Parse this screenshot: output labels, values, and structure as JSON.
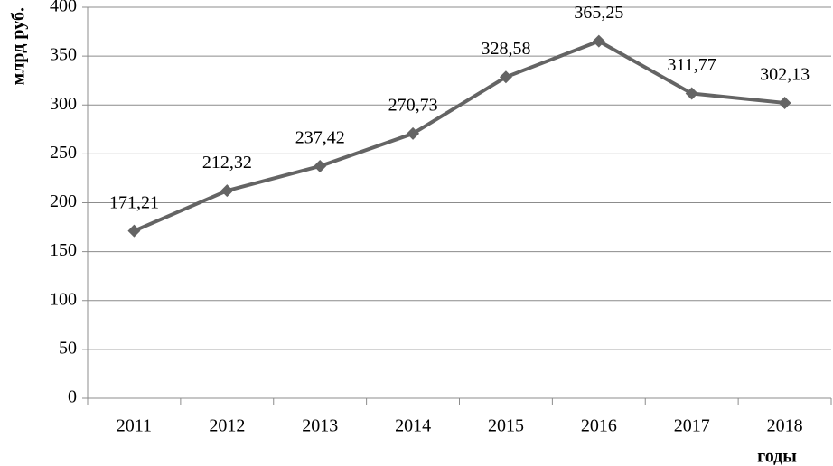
{
  "chart_data": {
    "type": "line",
    "x_label": "годы",
    "y_label": "млрд руб.",
    "categories": [
      "2011",
      "2012",
      "2013",
      "2014",
      "2015",
      "2016",
      "2017",
      "2018"
    ],
    "series": [
      {
        "color": "#646464",
        "values": [
          171.21,
          212.32,
          237.42,
          270.73,
          328.58,
          365.25,
          311.77,
          302.13
        ],
        "value_labels": [
          "171,21",
          "212,32",
          "237,42",
          "270,73",
          "328,58",
          "365,25",
          "311,77",
          "302,13"
        ]
      }
    ],
    "ylim": [
      0,
      400
    ],
    "yticks": [
      0,
      50,
      100,
      150,
      200,
      250,
      300,
      350,
      400
    ],
    "grid": true
  }
}
